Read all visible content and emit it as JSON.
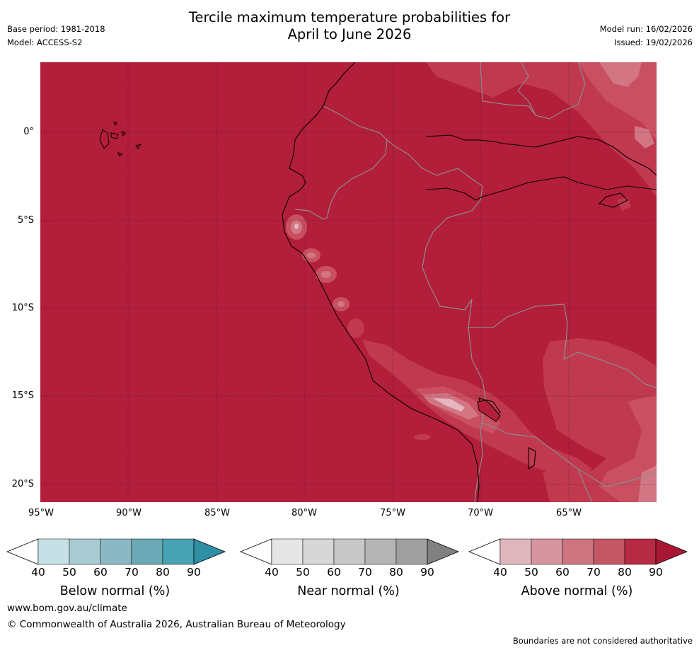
{
  "header": {
    "title_line1": "Tercile maximum temperature probabilities for",
    "title_line2": "April to June 2026",
    "base_period": "Base period: 1981-2018",
    "model": "Model: ACCESS-S2",
    "model_run": "Model run: 16/02/2026",
    "issued": "Issued: 19/02/2026"
  },
  "map": {
    "lat_labels": [
      "0°",
      "5°S",
      "10°S",
      "15°S",
      "20°S"
    ],
    "lon_labels": [
      "95°W",
      "90°W",
      "85°W",
      "80°W",
      "75°W",
      "70°W",
      "65°W"
    ],
    "colors": {
      "background_90": "#b31e3a",
      "class_80": "#c0394f",
      "class_70": "#c95061",
      "class_60": "#d27683",
      "class_50": "#e4b5bd",
      "coast": "#000000",
      "border": "#8c8c8c",
      "grid": "#333333"
    }
  },
  "colorbars": [
    {
      "title": "Below normal (%)",
      "ticks": [
        "40",
        "50",
        "60",
        "70",
        "80",
        "90"
      ],
      "colors": [
        "#ffffff",
        "#c5e1e6",
        "#a8cad1",
        "#8ab7c2",
        "#6aa9b5",
        "#47a2b3",
        "#2e8fa5"
      ]
    },
    {
      "title": "Near normal (%)",
      "ticks": [
        "40",
        "50",
        "60",
        "70",
        "80",
        "90"
      ],
      "colors": [
        "#ffffff",
        "#e6e6e6",
        "#d7d7d7",
        "#c8c8c8",
        "#b4b4b4",
        "#a0a0a0",
        "#808080"
      ]
    },
    {
      "title": "Above normal (%)",
      "ticks": [
        "40",
        "50",
        "60",
        "70",
        "80",
        "90"
      ],
      "colors": [
        "#ffffff",
        "#e0b6bd",
        "#d6959f",
        "#cc7580",
        "#c35764",
        "#b72a44",
        "#a81835"
      ]
    }
  ],
  "footer": {
    "website": "www.bom.gov.au/climate",
    "copyright": "© Commonwealth of Australia 2026, Australian Bureau of Meteorology",
    "disclaimer": "Boundaries are not considered authoritative"
  }
}
